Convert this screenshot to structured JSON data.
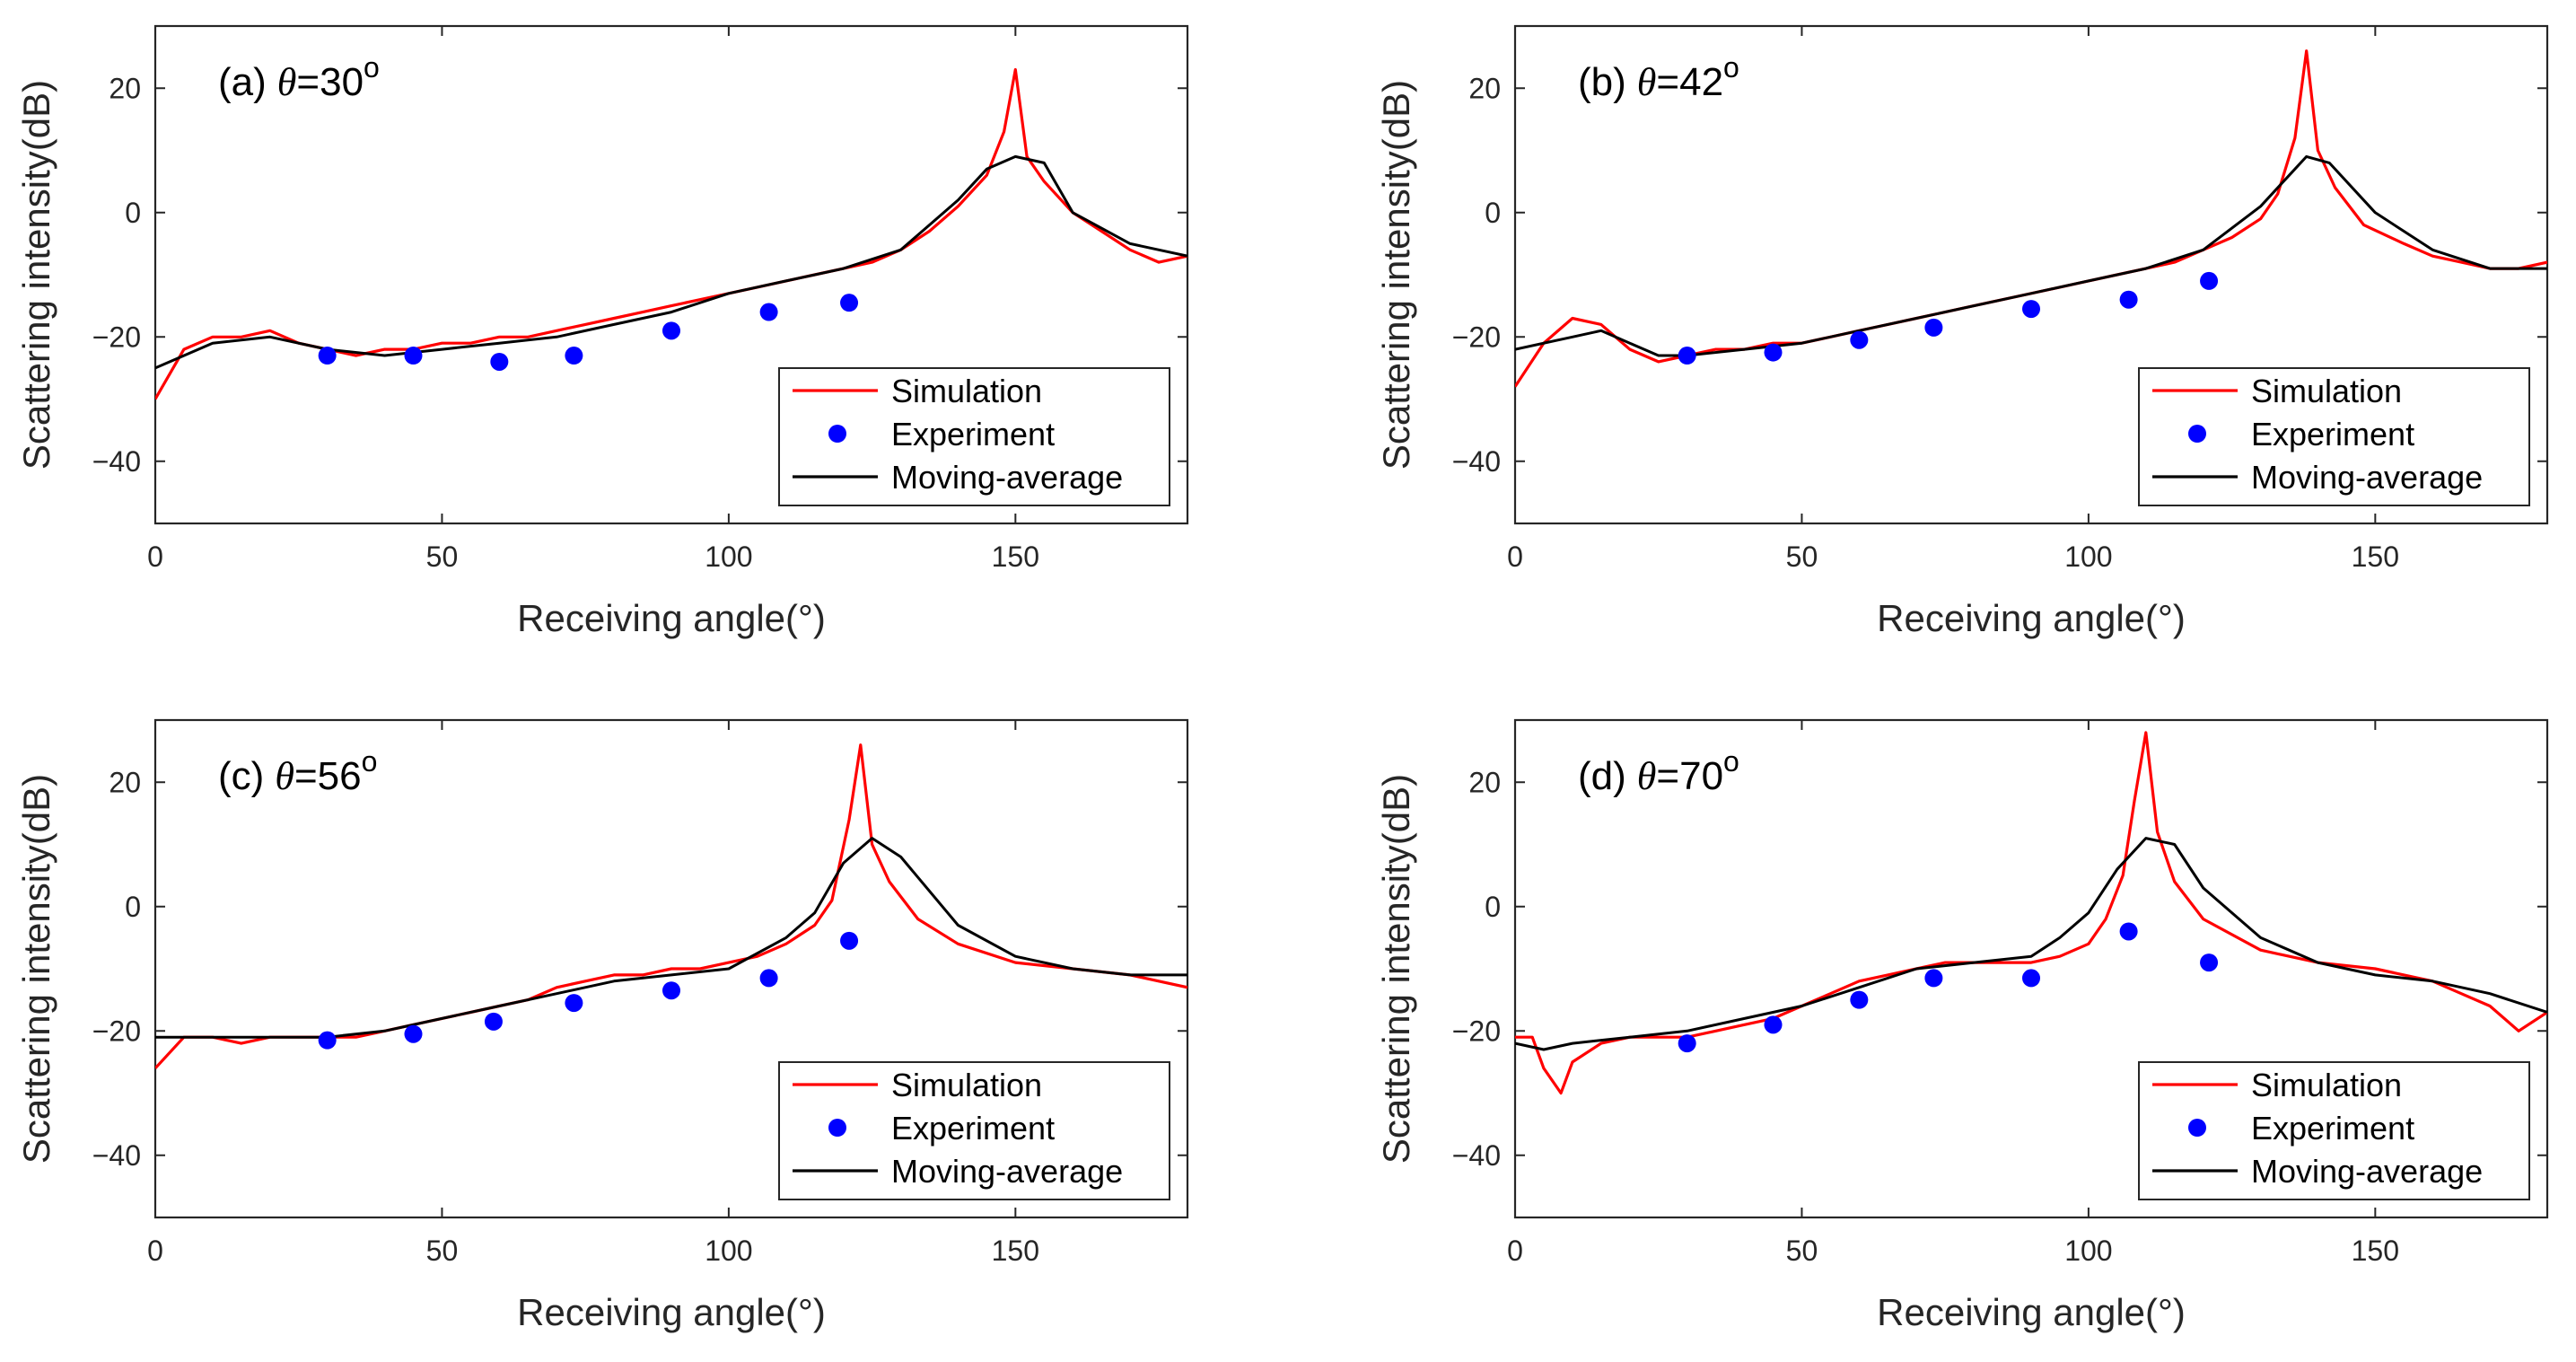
{
  "figure": {
    "name": "scattering-intensity-figure"
  },
  "chart_data": [
    {
      "type": "line",
      "panel_label": "(a)",
      "theta_symbol": "θ",
      "theta_value": "=30",
      "theta_sup": "o",
      "xlabel": "Receiving angle(°)",
      "ylabel": "Scattering intensity(dB)",
      "xlim": [
        0,
        180
      ],
      "ylim": [
        -50,
        30
      ],
      "xticks": [
        0,
        50,
        100,
        150
      ],
      "yticks": [
        -40,
        -20,
        0,
        20
      ],
      "grid": false,
      "legend_position": "bottom-right",
      "legend": [
        "Simulation",
        "Experiment",
        "Moving-average"
      ],
      "series": [
        {
          "name": "Simulation",
          "style": "red-line",
          "color": "#ff0000",
          "x": [
            0,
            5,
            10,
            15,
            20,
            25,
            30,
            35,
            40,
            45,
            50,
            55,
            60,
            65,
            70,
            75,
            80,
            85,
            90,
            95,
            100,
            105,
            110,
            115,
            120,
            125,
            130,
            135,
            140,
            145,
            148,
            150,
            152,
            155,
            160,
            165,
            170,
            175,
            180
          ],
          "y": [
            -30,
            -22,
            -20,
            -20,
            -19,
            -21,
            -22,
            -23,
            -22,
            -22,
            -21,
            -21,
            -20,
            -20,
            -19,
            -18,
            -17,
            -16,
            -15,
            -14,
            -13,
            -12,
            -11,
            -10,
            -9,
            -8,
            -6,
            -3,
            1,
            6,
            13,
            23,
            9,
            5,
            0,
            -3,
            -6,
            -8,
            -7
          ]
        },
        {
          "name": "Moving-average",
          "style": "black-line",
          "color": "#000000",
          "x": [
            0,
            10,
            20,
            30,
            40,
            50,
            60,
            70,
            80,
            90,
            100,
            110,
            120,
            130,
            140,
            145,
            150,
            155,
            160,
            170,
            180
          ],
          "y": [
            -25,
            -21,
            -20,
            -22,
            -23,
            -22,
            -21,
            -20,
            -18,
            -16,
            -13,
            -11,
            -9,
            -6,
            2,
            7,
            9,
            8,
            0,
            -5,
            -7
          ]
        },
        {
          "name": "Experiment",
          "style": "blue-dots",
          "color": "#0000ff",
          "x": [
            30,
            45,
            60,
            73,
            90,
            107,
            121
          ],
          "y": [
            -23,
            -23,
            -24,
            -23,
            -19,
            -16,
            -14.5
          ]
        }
      ]
    },
    {
      "type": "line",
      "panel_label": "(b)",
      "theta_symbol": "θ",
      "theta_value": "=42",
      "theta_sup": "o",
      "xlabel": "Receiving angle(°)",
      "ylabel": "Scattering intensity(dB)",
      "xlim": [
        0,
        180
      ],
      "ylim": [
        -50,
        30
      ],
      "xticks": [
        0,
        50,
        100,
        150
      ],
      "yticks": [
        -40,
        -20,
        0,
        20
      ],
      "grid": false,
      "legend_position": "bottom-right",
      "legend": [
        "Simulation",
        "Experiment",
        "Moving-average"
      ],
      "series": [
        {
          "name": "Simulation",
          "style": "red-line",
          "color": "#ff0000",
          "x": [
            0,
            5,
            10,
            15,
            20,
            25,
            30,
            35,
            40,
            45,
            50,
            55,
            60,
            65,
            70,
            75,
            80,
            85,
            90,
            95,
            100,
            105,
            110,
            115,
            120,
            125,
            130,
            133,
            136,
            138,
            140,
            143,
            148,
            155,
            160,
            165,
            170,
            175,
            180
          ],
          "y": [
            -28,
            -21,
            -17,
            -18,
            -22,
            -24,
            -23,
            -22,
            -22,
            -21,
            -21,
            -20,
            -19,
            -18,
            -17,
            -16,
            -15,
            -14,
            -13,
            -12,
            -11,
            -10,
            -9,
            -8,
            -6,
            -4,
            -1,
            3,
            12,
            26,
            10,
            4,
            -2,
            -5,
            -7,
            -8,
            -9,
            -9,
            -8
          ]
        },
        {
          "name": "Moving-average",
          "style": "black-line",
          "color": "#000000",
          "x": [
            0,
            10,
            15,
            20,
            25,
            30,
            40,
            50,
            60,
            70,
            80,
            90,
            100,
            110,
            120,
            130,
            135,
            138,
            142,
            150,
            160,
            170,
            180
          ],
          "y": [
            -22,
            -20,
            -19,
            -21,
            -23,
            -23,
            -22,
            -21,
            -19,
            -17,
            -15,
            -13,
            -11,
            -9,
            -6,
            1,
            6,
            9,
            8,
            0,
            -6,
            -9,
            -9
          ]
        },
        {
          "name": "Experiment",
          "style": "blue-dots",
          "color": "#0000ff",
          "x": [
            30,
            45,
            60,
            73,
            90,
            107,
            121
          ],
          "y": [
            -23,
            -22.5,
            -20.5,
            -18.5,
            -15.5,
            -14,
            -11
          ]
        }
      ]
    },
    {
      "type": "line",
      "panel_label": "(c)",
      "theta_symbol": "θ",
      "theta_value": "=56",
      "theta_sup": "o",
      "xlabel": "Receiving angle(°)",
      "ylabel": "Scattering intensity(dB)",
      "xlim": [
        0,
        180
      ],
      "ylim": [
        -50,
        30
      ],
      "xticks": [
        0,
        50,
        100,
        150
      ],
      "yticks": [
        -40,
        -20,
        0,
        20
      ],
      "grid": false,
      "legend_position": "bottom-right",
      "legend": [
        "Simulation",
        "Experiment",
        "Moving-average"
      ],
      "series": [
        {
          "name": "Simulation",
          "style": "red-line",
          "color": "#ff0000",
          "x": [
            0,
            5,
            10,
            15,
            20,
            25,
            30,
            35,
            40,
            45,
            50,
            55,
            60,
            65,
            70,
            75,
            80,
            85,
            90,
            95,
            100,
            105,
            110,
            115,
            118,
            121,
            123,
            125,
            128,
            133,
            140,
            150,
            160,
            170,
            180
          ],
          "y": [
            -26,
            -21,
            -21,
            -22,
            -21,
            -21,
            -21,
            -21,
            -20,
            -19,
            -18,
            -17,
            -16,
            -15,
            -13,
            -12,
            -11,
            -11,
            -10,
            -10,
            -9,
            -8,
            -6,
            -3,
            1,
            14,
            26,
            10,
            4,
            -2,
            -6,
            -9,
            -10,
            -11,
            -13
          ]
        },
        {
          "name": "Moving-average",
          "style": "black-line",
          "color": "#000000",
          "x": [
            0,
            10,
            20,
            30,
            40,
            50,
            60,
            70,
            80,
            90,
            100,
            110,
            115,
            120,
            125,
            130,
            140,
            150,
            160,
            170,
            180
          ],
          "y": [
            -21,
            -21,
            -21,
            -21,
            -20,
            -18,
            -16,
            -14,
            -12,
            -11,
            -10,
            -5,
            -1,
            7,
            11,
            8,
            -3,
            -8,
            -10,
            -11,
            -11
          ]
        },
        {
          "name": "Experiment",
          "style": "blue-dots",
          "color": "#0000ff",
          "x": [
            30,
            45,
            59,
            73,
            90,
            107,
            121
          ],
          "y": [
            -21.5,
            -20.5,
            -18.5,
            -15.5,
            -13.5,
            -11.5,
            -5.5
          ]
        }
      ]
    },
    {
      "type": "line",
      "panel_label": "(d)",
      "theta_symbol": "θ",
      "theta_value": "=70",
      "theta_sup": "o",
      "xlabel": "Receiving angle(°)",
      "ylabel": "Scattering intensity(dB)",
      "xlim": [
        0,
        180
      ],
      "ylim": [
        -50,
        30
      ],
      "xticks": [
        0,
        50,
        100,
        150
      ],
      "yticks": [
        -40,
        -20,
        0,
        20
      ],
      "grid": false,
      "legend_position": "bottom-right",
      "legend": [
        "Simulation",
        "Experiment",
        "Moving-average"
      ],
      "series": [
        {
          "name": "Simulation",
          "style": "red-line",
          "color": "#ff0000",
          "x": [
            0,
            3,
            5,
            8,
            10,
            15,
            20,
            25,
            30,
            35,
            40,
            45,
            50,
            55,
            60,
            65,
            70,
            75,
            80,
            85,
            90,
            95,
            100,
            103,
            106,
            108,
            110,
            112,
            115,
            120,
            130,
            140,
            150,
            160,
            165,
            170,
            175,
            180
          ],
          "y": [
            -21,
            -21,
            -26,
            -30,
            -25,
            -22,
            -21,
            -21,
            -21,
            -20,
            -19,
            -18,
            -16,
            -14,
            -12,
            -11,
            -10,
            -9,
            -9,
            -9,
            -9,
            -8,
            -6,
            -2,
            5,
            17,
            28,
            12,
            4,
            -2,
            -7,
            -9,
            -10,
            -12,
            -14,
            -16,
            -20,
            -17
          ]
        },
        {
          "name": "Moving-average",
          "style": "black-line",
          "color": "#000000",
          "x": [
            0,
            5,
            10,
            20,
            30,
            40,
            50,
            60,
            70,
            80,
            90,
            95,
            100,
            105,
            110,
            115,
            120,
            130,
            140,
            150,
            160,
            170,
            180
          ],
          "y": [
            -22,
            -23,
            -22,
            -21,
            -20,
            -18,
            -16,
            -13,
            -10,
            -9,
            -8,
            -5,
            -1,
            6,
            11,
            10,
            3,
            -5,
            -9,
            -11,
            -12,
            -14,
            -17
          ]
        },
        {
          "name": "Experiment",
          "style": "blue-dots",
          "color": "#0000ff",
          "x": [
            30,
            45,
            60,
            73,
            90,
            107,
            121
          ],
          "y": [
            -22,
            -19,
            -15,
            -11.5,
            -11.5,
            -4,
            -9
          ]
        }
      ]
    }
  ]
}
